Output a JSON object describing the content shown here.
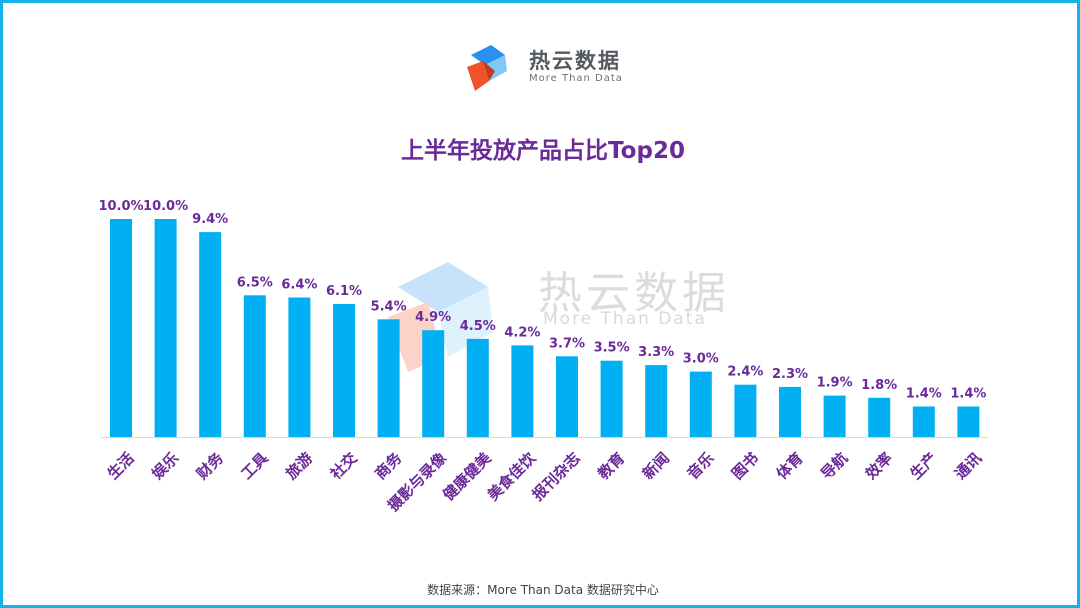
{
  "brand": {
    "name": "热云数据",
    "tagline": "More Than Data"
  },
  "watermark": {
    "name": "热云数据",
    "tagline": "More Than Data"
  },
  "source": "数据来源：More Than Data 数据研究中心",
  "colors": {
    "bar": "#00b0f2",
    "value_label": "#6a2a9a",
    "category_label": "#6a2a9a",
    "title": "#6a2a9a",
    "border": "#12b4e8"
  },
  "chart_data": {
    "type": "bar",
    "title": "上半年投放产品占比Top20",
    "categories": [
      "生活",
      "娱乐",
      "财务",
      "工具",
      "旅游",
      "社交",
      "商务",
      "摄影与录像",
      "健康健美",
      "美食佳饮",
      "报刊杂志",
      "教育",
      "新闻",
      "音乐",
      "图书",
      "体育",
      "导航",
      "效率",
      "生产",
      "通讯"
    ],
    "values": [
      10.0,
      10.0,
      9.4,
      6.5,
      6.4,
      6.1,
      5.4,
      4.9,
      4.5,
      4.2,
      3.7,
      3.5,
      3.3,
      3.0,
      2.4,
      2.3,
      1.9,
      1.8,
      1.4,
      1.4
    ],
    "value_labels": [
      "10.0%",
      "10.0%",
      "9.4%",
      "6.5%",
      "6.4%",
      "6.1%",
      "5.4%",
      "4.9%",
      "4.5%",
      "4.2%",
      "3.7%",
      "3.5%",
      "3.3%",
      "3.0%",
      "2.4%",
      "2.3%",
      "1.9%",
      "1.8%",
      "1.4%",
      "1.4%"
    ],
    "xlabel": "",
    "ylabel": "",
    "ylim": [
      0,
      10
    ],
    "grid": false,
    "legend": "none"
  }
}
